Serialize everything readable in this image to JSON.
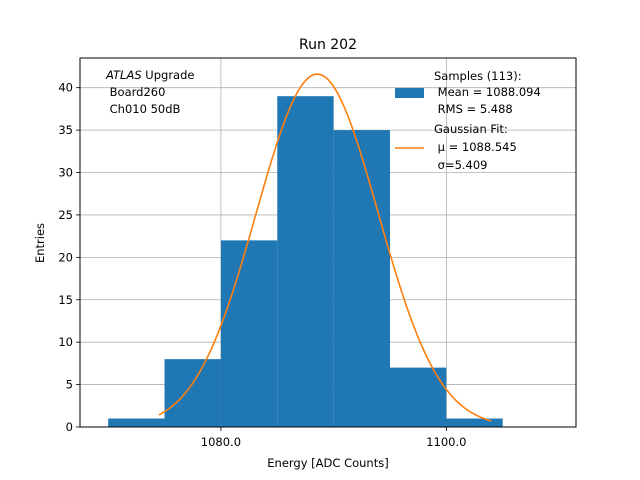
{
  "chart_data": {
    "type": "bar",
    "title": "Run 202",
    "xlabel": "Energy [ADC Counts]",
    "ylabel": "Entries",
    "xlim": [
      1067.5,
      1111.5
    ],
    "ylim": [
      0,
      43.5
    ],
    "x_ticks": [
      1080,
      1100
    ],
    "x_tick_labels": [
      "1080.0",
      "1100.0"
    ],
    "y_ticks": [
      0,
      5,
      10,
      15,
      20,
      25,
      30,
      35,
      40
    ],
    "y_tick_labels": [
      "0",
      "5",
      "10",
      "15",
      "20",
      "25",
      "30",
      "35",
      "40"
    ],
    "grid": true,
    "bar_color": "#1f77b4",
    "fit_color": "#ff7f0e",
    "histogram": {
      "bin_edges": [
        1070,
        1075,
        1080,
        1085,
        1090,
        1095,
        1100,
        1105
      ],
      "counts": [
        1,
        8,
        22,
        39,
        35,
        7,
        1
      ]
    },
    "gaussian_fit": {
      "mu": 1088.545,
      "sigma": 5.409,
      "amplitude": 41.6,
      "x_range": [
        1074.5,
        1104.0
      ]
    },
    "legend": {
      "position": "top-right",
      "entries": [
        {
          "kind": "bar",
          "lines": [
            "Samples (113):",
            " Mean = 1088.094",
            " RMS = 5.488"
          ]
        },
        {
          "kind": "line",
          "lines": [
            "Gaussian Fit:",
            " μ = 1088.545",
            " σ=5.409"
          ]
        }
      ]
    },
    "annotation": {
      "position": "top-left",
      "italic_word": "ATLAS",
      "first_line_rest": " Upgrade",
      "lines": [
        " Board260",
        " Ch010 50dB"
      ]
    }
  }
}
